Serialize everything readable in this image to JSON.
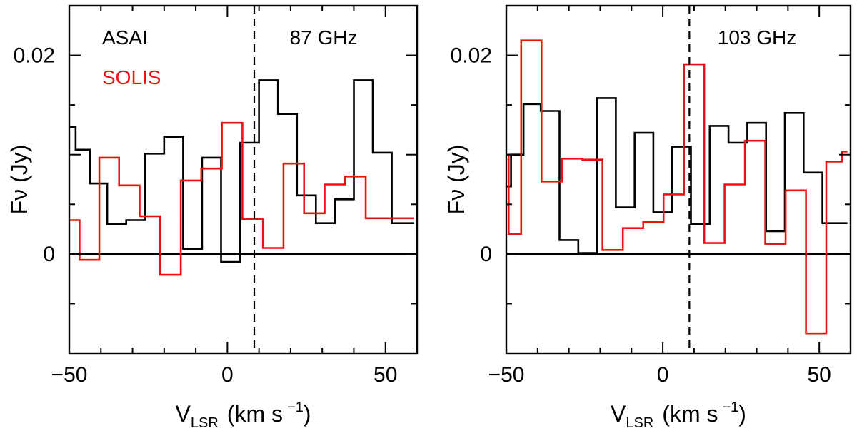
{
  "chart_data": [
    {
      "type": "line",
      "drawstyle": "steps-mid",
      "title": "87 GHz",
      "xlabel": "V_LSR (km s^-1)",
      "xlabel_main": "V",
      "xlabel_sub": "LSR",
      "xlabel_unit": "(km s",
      "xlabel_exp": "−1",
      "xlabel_close": ")",
      "ylabel": "Fν (Jy)",
      "xlim": [
        -50,
        60
      ],
      "ylim": [
        -0.01,
        0.025
      ],
      "xticks": [
        -50,
        0,
        50
      ],
      "xtick_labels": [
        "−50",
        "0",
        "50"
      ],
      "yticks": [
        0,
        0.02
      ],
      "ytick_labels": [
        "0",
        "0.02"
      ],
      "zero_line": 0,
      "vline": 8.5,
      "legend": [
        "ASAI",
        "SOLIS"
      ],
      "series": [
        {
          "name": "ASAI",
          "color": "#000000",
          "x": [
            -50,
            -46,
            -41,
            -35,
            -29,
            -23,
            -17,
            -11,
            -5,
            1,
            7,
            13,
            19,
            25,
            31,
            37,
            43,
            49,
            55,
            59
          ],
          "y": [
            0.0128,
            0.0105,
            0.0071,
            0.003,
            0.0034,
            0.0101,
            0.0118,
            0.0005,
            0.0097,
            -0.0008,
            0.0112,
            0.0175,
            0.0141,
            0.0059,
            0.0031,
            0.0055,
            0.0175,
            0.0102,
            0.0031,
            0.0031
          ]
        },
        {
          "name": "SOLIS",
          "color": "#ee1111",
          "x": [
            -50,
            -43.5,
            -37.5,
            -31,
            -24.5,
            -18,
            -11.5,
            -5,
            1.5,
            8,
            14.5,
            21,
            27.5,
            34,
            40.5,
            47,
            53.5,
            59
          ],
          "y": [
            0.0034,
            -0.0006,
            0.0097,
            0.0069,
            0.0038,
            -0.0021,
            0.0074,
            0.0086,
            0.0132,
            0.0035,
            0.0006,
            0.0091,
            0.0041,
            0.007,
            0.0078,
            0.0036,
            0.0036,
            0.0036
          ]
        }
      ]
    },
    {
      "type": "line",
      "drawstyle": "steps-mid",
      "title": "103 GHz",
      "xlabel": "V_LSR (km s^-1)",
      "xlabel_main": "V",
      "xlabel_sub": "LSR",
      "xlabel_unit": "(km s",
      "xlabel_exp": "−1",
      "xlabel_close": ")",
      "ylabel": "Fν (Jy)",
      "xlim": [
        -50,
        60
      ],
      "ylim": [
        -0.01,
        0.025
      ],
      "xticks": [
        -50,
        0,
        50
      ],
      "xtick_labels": [
        "−50",
        "0",
        "50"
      ],
      "yticks": [
        0,
        0.02
      ],
      "ytick_labels": [
        "0",
        "0.02"
      ],
      "zero_line": 0,
      "vline": 8.5,
      "legend": [],
      "series": [
        {
          "name": "ASAI",
          "color": "#000000",
          "x": [
            -50,
            -47,
            -42,
            -36,
            -30,
            -24,
            -18,
            -12,
            -6,
            0,
            6,
            12,
            18,
            24,
            30,
            36,
            42,
            48,
            54,
            59
          ],
          "y": [
            0.0068,
            0.01,
            0.0151,
            0.0144,
            0.0014,
            0.0001,
            0.0157,
            0.0047,
            0.0122,
            0.0042,
            0.0108,
            0.003,
            0.0129,
            0.0112,
            0.0132,
            0.0023,
            0.0142,
            0.0082,
            0.0031,
            0.0031
          ]
        },
        {
          "name": "SOLIS",
          "color": "#ee1111",
          "x": [
            -50,
            -48.5,
            -42,
            -35.5,
            -29,
            -22.5,
            -16,
            -9.5,
            -3,
            3.5,
            10,
            16.5,
            23,
            29.5,
            36,
            42.5,
            49,
            55.5,
            59
          ],
          "y": [
            0.01,
            0.002,
            0.0215,
            0.0073,
            0.0096,
            0.0095,
            0.0004,
            0.0026,
            0.0032,
            0.006,
            0.0191,
            0.0011,
            0.007,
            0.0114,
            0.001,
            0.0064,
            -0.008,
            0.0093,
            0.0103
          ]
        }
      ]
    }
  ]
}
